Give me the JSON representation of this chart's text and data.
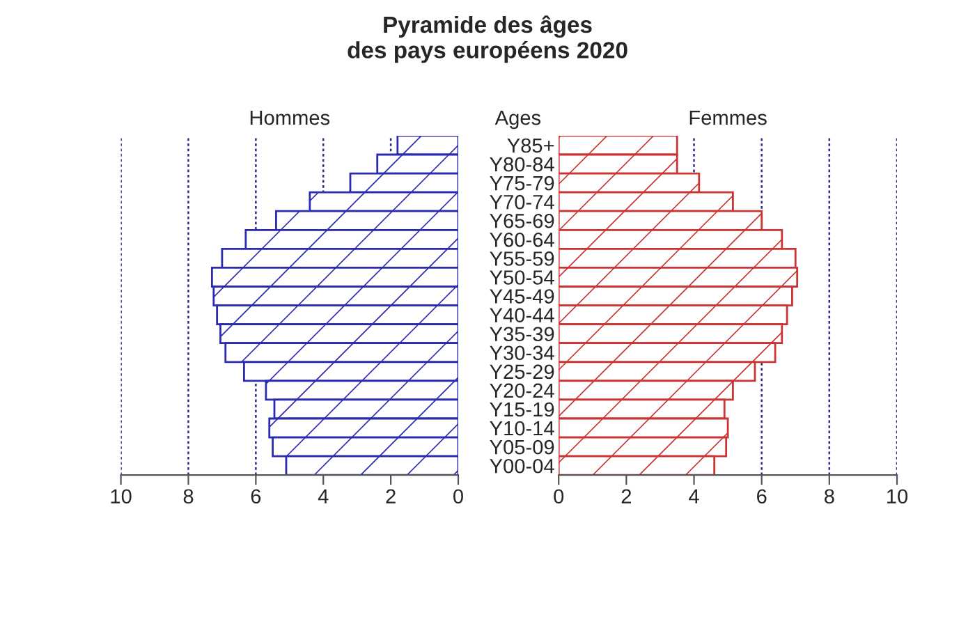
{
  "chart_data": [
    {
      "type": "bar",
      "orientation": "horizontal",
      "title": "Pyramide des âges\ndes pays européens 2020",
      "subtitle": "Hommes",
      "categories": [
        null,
        null,
        null,
        null,
        null,
        null,
        null,
        null,
        null,
        null,
        null,
        null,
        null,
        null,
        null,
        null,
        null,
        null
      ],
      "series": [
        {
          "color": "#2b2bb0",
          "values": [
            1.8,
            2.4,
            3.2,
            4.4,
            5.4,
            6.3,
            7.0,
            7.3,
            7.25,
            7.15,
            7.05,
            6.9,
            6.35,
            5.7,
            5.45,
            5.6,
            5.5,
            5.1
          ]
        }
      ],
      "xlim": [
        10,
        0
      ],
      "xticks": [
        10,
        8,
        6,
        4,
        2,
        0
      ],
      "grid": "x",
      "tick_labels": "x"
    },
    {
      "type": "bar",
      "orientation": "horizontal",
      "title": "Femmes",
      "ylabel": "Ages",
      "categories": [
        "Y85+",
        "Y80-84",
        "Y75-79",
        "Y70-74",
        "Y65-69",
        "Y60-64",
        "Y55-59",
        "Y50-54",
        "Y45-49",
        "Y40-44",
        "Y35-39",
        "Y30-34",
        "Y25-29",
        "Y20-24",
        "Y15-19",
        "Y10-14",
        "Y05-09",
        "Y00-04"
      ],
      "series": [
        {
          "color": "#cc3333",
          "values": [
            3.5,
            3.5,
            4.15,
            5.15,
            6.0,
            6.6,
            7.0,
            7.05,
            6.9,
            6.75,
            6.6,
            6.4,
            5.8,
            5.15,
            4.9,
            5.0,
            4.95,
            4.6
          ]
        }
      ],
      "xlim": [
        0,
        10
      ],
      "xticks": [
        0,
        2,
        4,
        6,
        8,
        10
      ],
      "grid": "x"
    }
  ]
}
